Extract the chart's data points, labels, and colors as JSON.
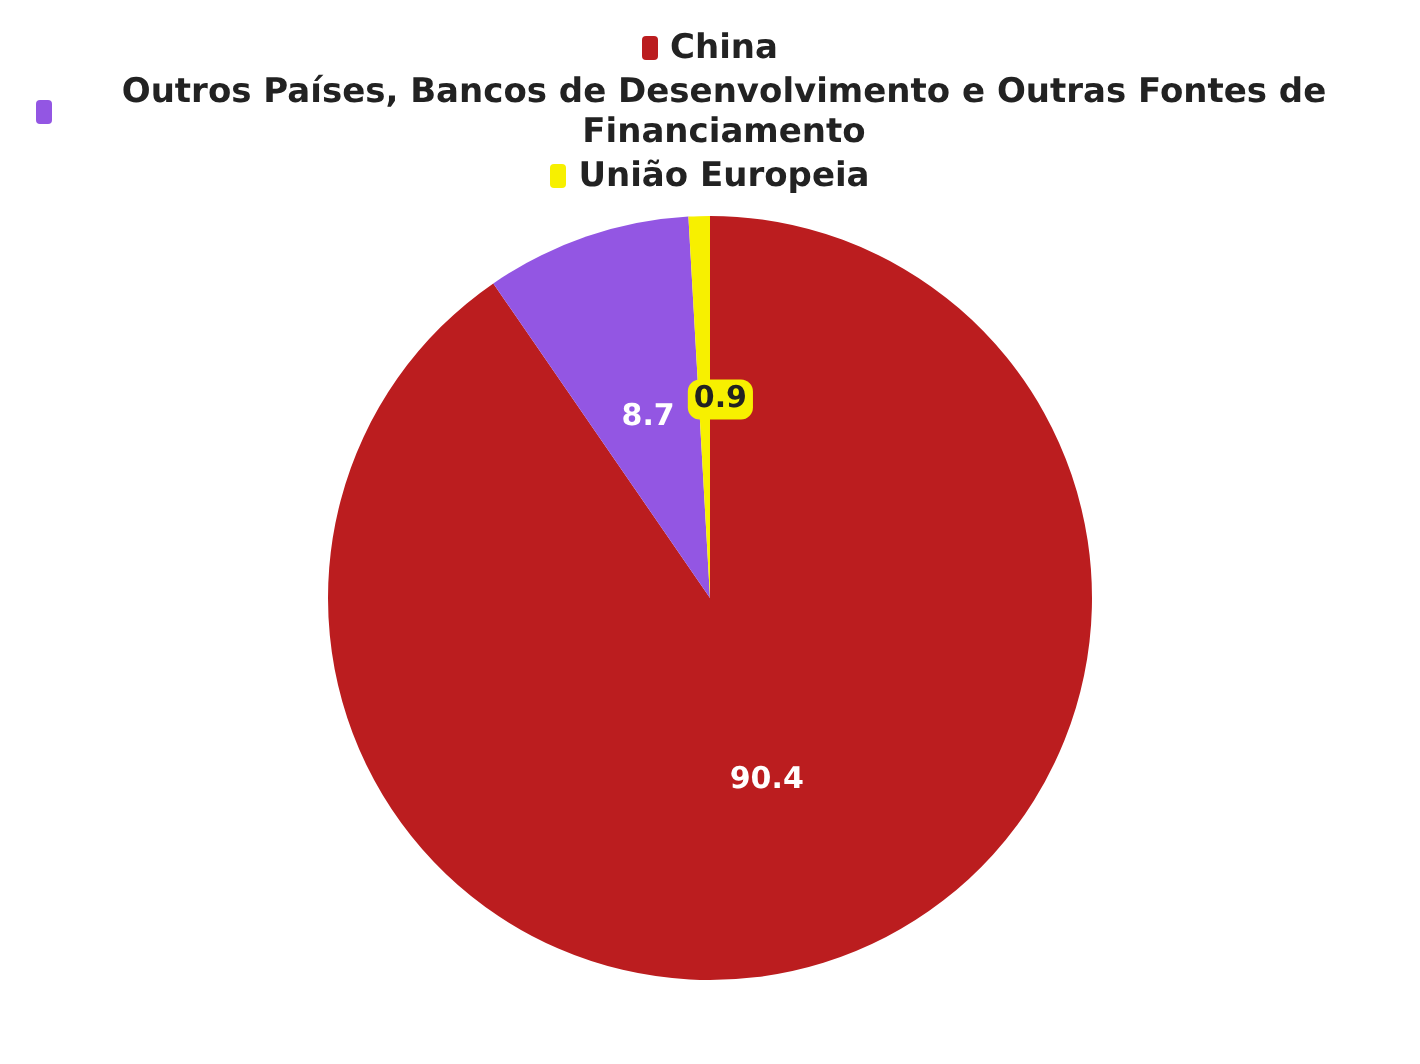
{
  "chart_data": {
    "type": "pie",
    "categories": [
      "China",
      "Outros Países, Bancos de Desenvolvimento e Outras Fontes de Financiamento",
      "União Europeia"
    ],
    "values": [
      90.4,
      8.7,
      0.9
    ],
    "colors": [
      "#bb1d1f",
      "#9356e3",
      "#f7f000"
    ],
    "legend": "top",
    "data_labels": true
  }
}
